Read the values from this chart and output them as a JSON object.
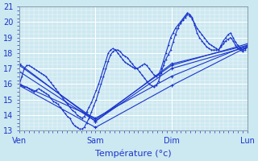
{
  "xlabel": "Température (°c)",
  "xlim": [
    0,
    288
  ],
  "ylim": [
    13,
    21
  ],
  "yticks": [
    13,
    14,
    15,
    16,
    17,
    18,
    19,
    20,
    21
  ],
  "xtick_labels": [
    "Ven",
    "Sam",
    "Dim",
    "Lun"
  ],
  "xtick_positions": [
    0,
    96,
    192,
    288
  ],
  "background_color": "#cce8f0",
  "grid_color": "#ffffff",
  "line_color": "#1a35cc",
  "series": [
    {
      "type": "line",
      "points": [
        [
          0,
          15.9
        ],
        [
          96,
          13.2
        ],
        [
          192,
          15.9
        ],
        [
          288,
          18.4
        ]
      ]
    },
    {
      "type": "line",
      "points": [
        [
          0,
          16.0
        ],
        [
          96,
          13.8
        ],
        [
          192,
          16.5
        ],
        [
          288,
          18.5
        ]
      ]
    },
    {
      "type": "line",
      "points": [
        [
          0,
          16.8
        ],
        [
          96,
          13.6
        ],
        [
          192,
          17.0
        ],
        [
          288,
          18.4
        ]
      ]
    },
    {
      "type": "line",
      "points": [
        [
          0,
          17.2
        ],
        [
          96,
          13.7
        ],
        [
          192,
          17.2
        ],
        [
          288,
          18.6
        ]
      ]
    },
    {
      "type": "line",
      "points": [
        [
          0,
          17.3
        ],
        [
          96,
          13.6
        ],
        [
          192,
          17.3
        ],
        [
          288,
          18.5
        ]
      ]
    },
    {
      "type": "curve",
      "x_start": 0,
      "data": [
        15.9,
        15.9,
        15.8,
        15.8,
        15.7,
        15.6,
        15.5,
        15.6,
        15.7,
        15.6,
        15.5,
        15.4,
        15.3,
        15.1,
        14.9,
        14.8,
        14.7,
        14.5,
        14.3,
        14.1,
        13.9,
        13.8,
        13.5,
        13.3,
        13.2,
        13.1,
        13.1,
        13.2,
        13.5,
        13.8,
        14.2,
        14.6,
        15.0,
        15.5,
        16.0,
        16.5,
        17.0,
        17.5,
        17.9,
        18.1,
        18.2,
        18.2,
        18.1,
        17.9,
        17.8,
        17.7,
        17.5,
        17.3,
        17.1,
        17.0,
        16.8,
        16.6,
        16.4,
        16.2,
        16.0,
        15.9,
        15.8,
        15.9,
        16.2,
        16.7,
        17.2,
        17.6,
        17.9,
        18.2,
        18.7,
        19.2,
        19.6,
        19.9,
        20.1,
        20.3,
        20.5,
        20.4,
        20.2,
        19.9,
        19.6,
        19.4,
        19.2,
        19.0,
        18.8,
        18.6,
        18.5,
        18.4,
        18.3,
        18.2,
        18.4,
        18.6,
        18.8,
        18.9,
        19.0,
        18.8,
        18.5,
        18.3,
        18.2,
        18.1,
        18.2,
        18.4
      ]
    },
    {
      "type": "curve",
      "x_start": 0,
      "data": [
        16.0,
        16.5,
        17.0,
        17.2,
        17.2,
        17.1,
        17.0,
        16.9,
        16.8,
        16.7,
        16.6,
        16.5,
        16.3,
        16.1,
        15.9,
        15.7,
        15.5,
        15.3,
        15.1,
        14.9,
        14.7,
        14.5,
        14.3,
        14.2,
        14.0,
        13.9,
        13.8,
        13.9,
        14.2,
        14.5,
        14.8,
        15.2,
        15.6,
        16.0,
        16.5,
        17.0,
        17.5,
        18.0,
        18.2,
        18.3,
        18.2,
        18.0,
        17.8,
        17.6,
        17.4,
        17.3,
        17.2,
        17.1,
        17.0,
        17.0,
        17.1,
        17.2,
        17.3,
        17.2,
        17.0,
        16.8,
        16.6,
        16.5,
        16.6,
        17.0,
        17.5,
        18.0,
        18.5,
        19.0,
        19.3,
        19.6,
        19.8,
        20.0,
        20.2,
        20.4,
        20.6,
        20.5,
        20.3,
        19.8,
        19.3,
        19.0,
        18.8,
        18.6,
        18.4,
        18.3,
        18.2,
        18.2,
        18.2,
        18.2,
        18.5,
        18.8,
        19.0,
        19.2,
        19.3,
        19.0,
        18.7,
        18.5,
        18.3,
        18.2,
        18.3,
        18.5
      ]
    }
  ]
}
